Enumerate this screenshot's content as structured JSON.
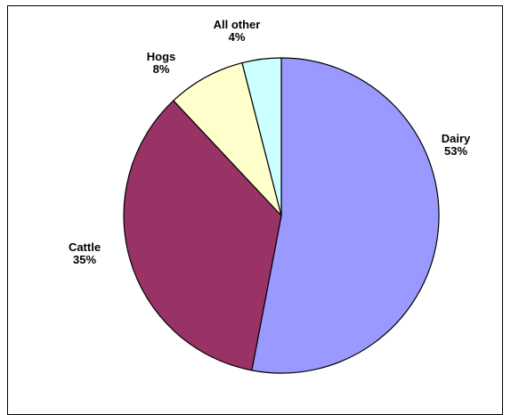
{
  "chart_data": {
    "type": "pie",
    "title": "",
    "slices": [
      {
        "label": "Dairy",
        "value": 53,
        "value_label": "53%",
        "color": "#9999ff"
      },
      {
        "label": "Cattle",
        "value": 35,
        "value_label": "35%",
        "color": "#993366"
      },
      {
        "label": "Hogs",
        "value": 8,
        "value_label": "8%",
        "color": "#ffffcc"
      },
      {
        "label": "All other",
        "value": 4,
        "value_label": "4%",
        "color": "#ccffff"
      }
    ],
    "start": "12 o'clock",
    "direction": "clockwise",
    "legend": "none"
  }
}
